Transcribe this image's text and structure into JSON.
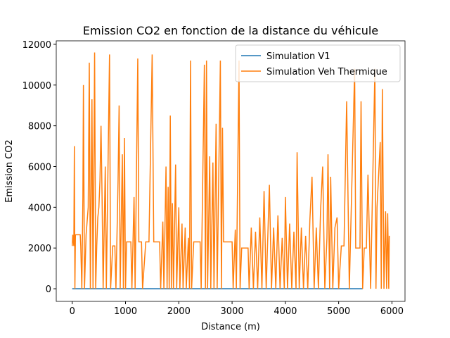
{
  "chart_data": {
    "type": "line",
    "title": "Emission CO2 en fonction de la distance du véhicule",
    "x_label": "Distance (m)",
    "y_label": "Emission CO2",
    "xlim": [
      -300,
      6245
    ],
    "ylim": [
      -620,
      12170
    ],
    "xticks": [
      0,
      1000,
      2000,
      3000,
      4000,
      5000,
      6000
    ],
    "yticks": [
      0,
      2000,
      4000,
      6000,
      8000,
      10000,
      12000
    ],
    "legend": "upper right",
    "series": [
      {
        "name": "Simulation V1",
        "color": "#1f77b4",
        "x": [
          0,
          5450
        ],
        "values": [
          0,
          0
        ]
      },
      {
        "name": "Simulation Veh Thermique",
        "color": "#ff7f0e",
        "x": [
          0,
          10,
          30,
          40,
          50,
          60,
          150,
          160,
          180,
          200,
          210,
          230,
          260,
          300,
          320,
          340,
          370,
          390,
          420,
          440,
          460,
          480,
          500,
          520,
          540,
          560,
          580,
          620,
          640,
          700,
          720,
          760,
          800,
          820,
          860,
          880,
          900,
          940,
          960,
          980,
          1000,
          1020,
          1100,
          1120,
          1160,
          1180,
          1230,
          1250,
          1300,
          1320,
          1380,
          1440,
          1500,
          1530,
          1640,
          1660,
          1700,
          1720,
          1760,
          1780,
          1800,
          1820,
          1840,
          1860,
          1880,
          1900,
          1940,
          1960,
          2000,
          2020,
          2060,
          2080,
          2120,
          2140,
          2180,
          2200,
          2220,
          2240,
          2280,
          2400,
          2420,
          2480,
          2500,
          2520,
          2540,
          2580,
          2600,
          2640,
          2660,
          2700,
          2720,
          2780,
          2800,
          2820,
          2840,
          3000,
          3020,
          3060,
          3080,
          3130,
          3150,
          3180,
          3300,
          3320,
          3360,
          3400,
          3440,
          3480,
          3520,
          3560,
          3600,
          3640,
          3700,
          3740,
          3780,
          3820,
          3860,
          3900,
          3940,
          3980,
          4000,
          4040,
          4080,
          4120,
          4160,
          4200,
          4220,
          4260,
          4300,
          4340,
          4380,
          4420,
          4460,
          4500,
          4540,
          4580,
          4620,
          4660,
          4700,
          4740,
          4780,
          4800,
          4830,
          4850,
          4890,
          4930,
          4970,
          5000,
          5050,
          5100,
          5150,
          5200,
          5300,
          5320,
          5400,
          5420,
          5450,
          5480,
          5520,
          5550,
          5600,
          5680,
          5700,
          5720,
          5780,
          5800,
          5820,
          5850,
          5880,
          5900,
          5920,
          5940,
          5950
        ],
        "values": [
          2100,
          2650,
          2100,
          7000,
          0,
          2650,
          2650,
          2100,
          0,
          4500,
          10000,
          0,
          2650,
          4000,
          11100,
          0,
          9300,
          0,
          11600,
          0,
          2100,
          3500,
          4000,
          5300,
          8000,
          4500,
          0,
          6000,
          0,
          11500,
          0,
          2100,
          2100,
          0,
          5300,
          9000,
          0,
          6600,
          0,
          7400,
          0,
          2300,
          2300,
          0,
          4500,
          0,
          11300,
          2300,
          2300,
          0,
          2300,
          2300,
          11500,
          2300,
          2300,
          0,
          3300,
          0,
          6000,
          0,
          5000,
          0,
          8500,
          0,
          4200,
          0,
          6100,
          0,
          4000,
          0,
          3200,
          0,
          3000,
          0,
          2500,
          0,
          11200,
          0,
          2300,
          2300,
          0,
          11000,
          0,
          11200,
          0,
          6500,
          0,
          6200,
          0,
          8100,
          0,
          11200,
          0,
          7900,
          2300,
          2300,
          0,
          2900,
          0,
          11200,
          0,
          2000,
          2000,
          0,
          3000,
          0,
          2800,
          0,
          3500,
          0,
          4800,
          0,
          5100,
          0,
          3000,
          0,
          3600,
          0,
          2500,
          0,
          4500,
          0,
          3200,
          0,
          2800,
          0,
          6700,
          0,
          3000,
          0,
          2600,
          0,
          3400,
          5500,
          0,
          3000,
          0,
          3800,
          6000,
          0,
          2500,
          6600,
          0,
          5500,
          0,
          3000,
          3500,
          0,
          2100,
          2100,
          9200,
          0,
          10800,
          2000,
          2000,
          9200,
          0,
          2000,
          2000,
          5600,
          0,
          10800,
          0,
          4000,
          7200,
          0,
          9800,
          0,
          3800,
          0,
          3700,
          0,
          2600
        ]
      }
    ]
  }
}
